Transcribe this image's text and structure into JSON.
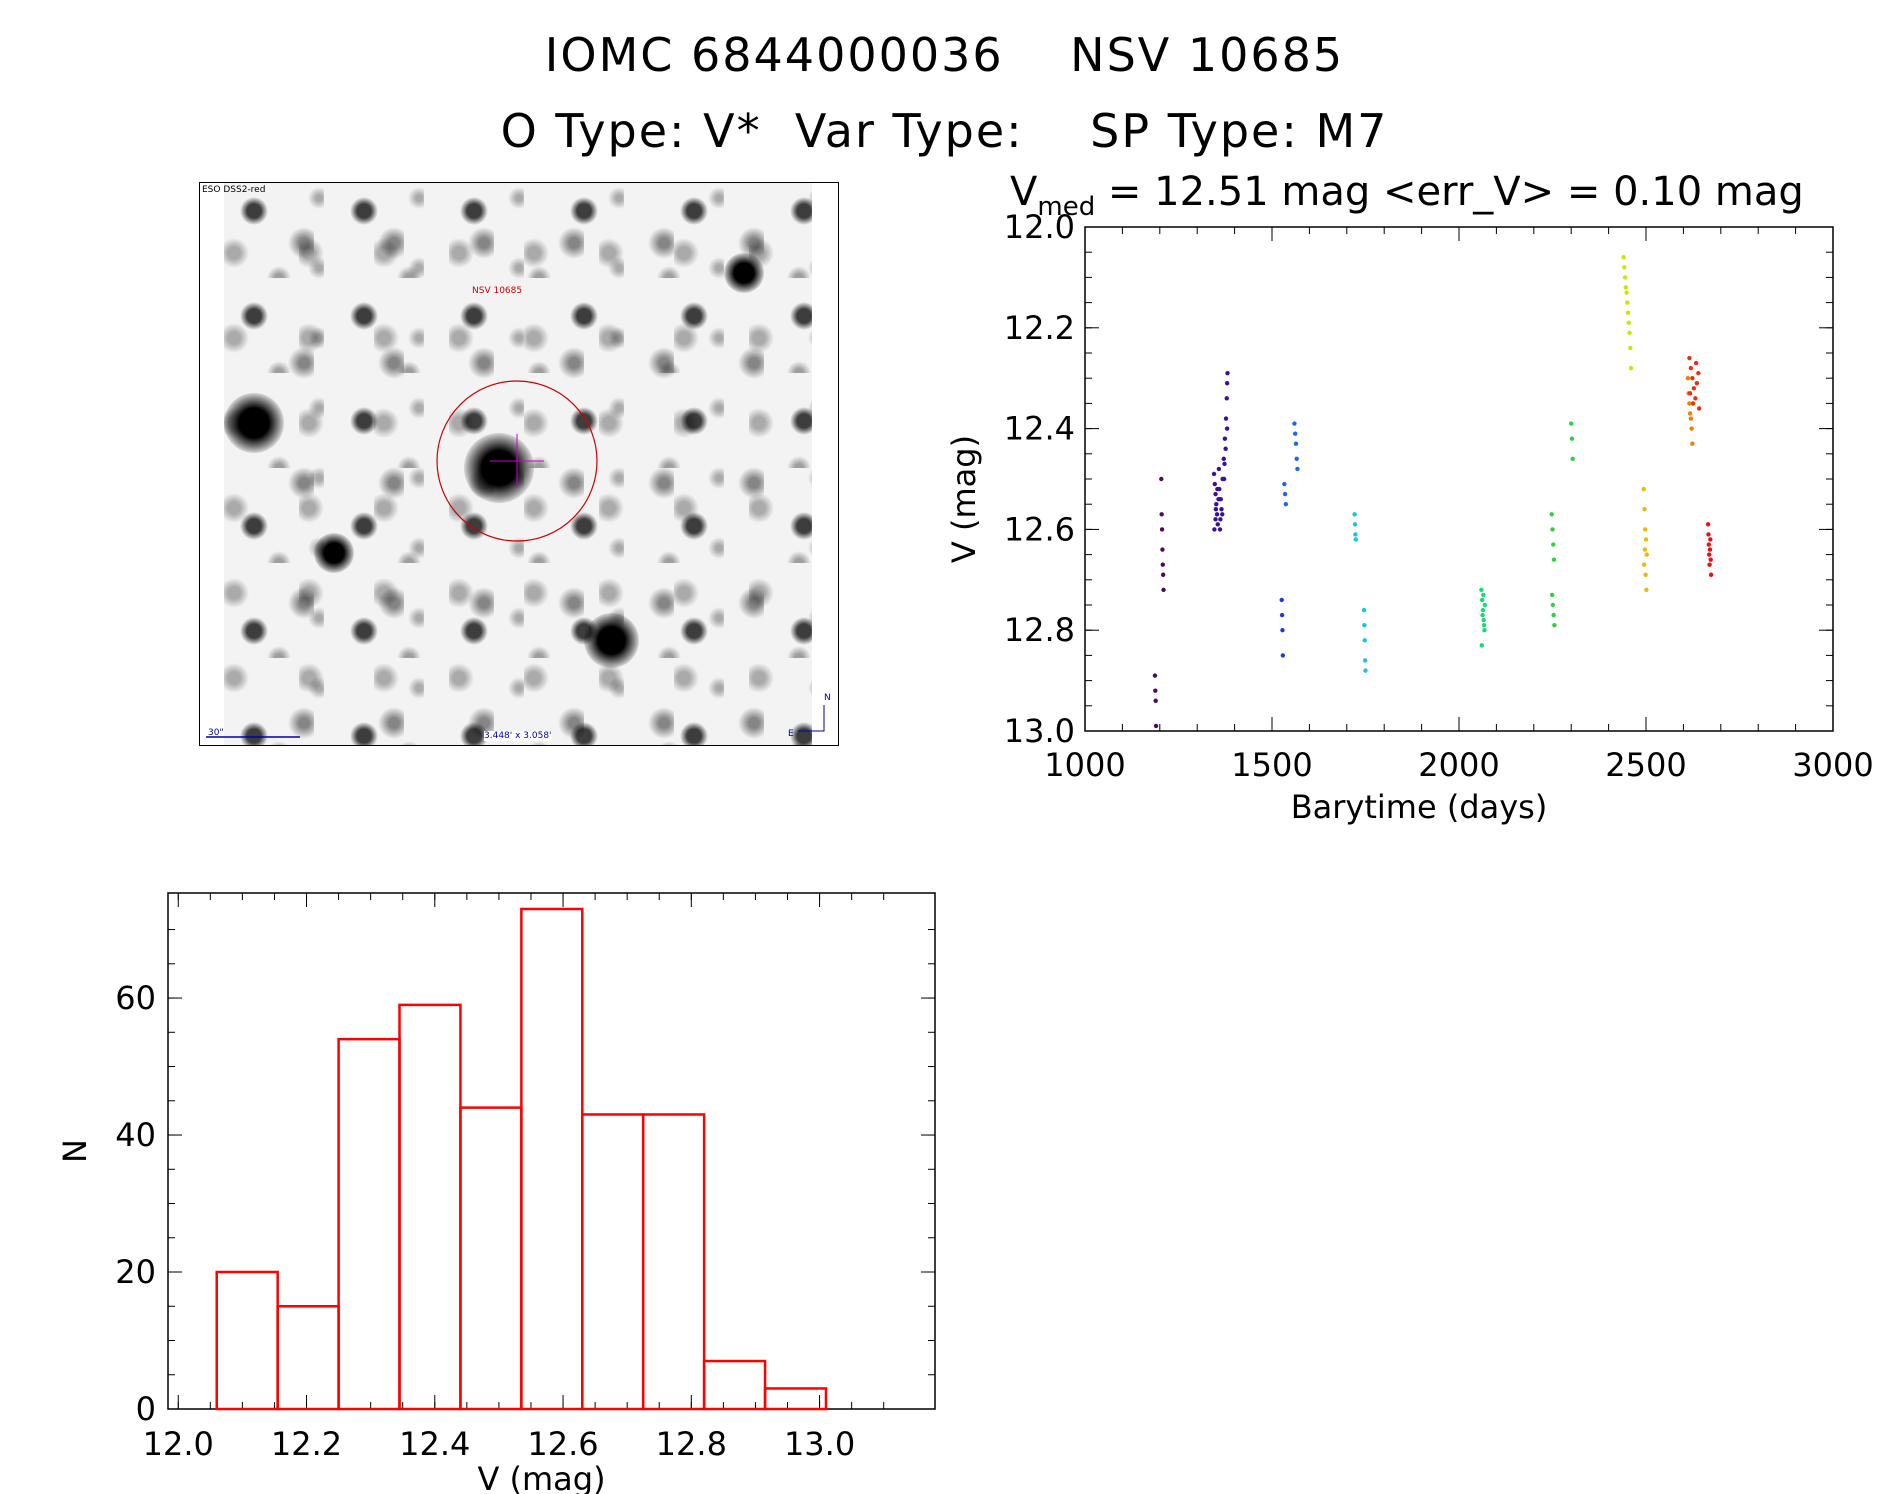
{
  "header": {
    "title_line1": "IOMC 6844000036    NSV 10685",
    "title_line2": "O Type: V*  Var Type:    SP Type: M7"
  },
  "finder_chart": {
    "survey_label": "ESO DSS2-red",
    "target_label": "NSV 10685",
    "scale_label": "30\"",
    "fov_label": "3.448' x 3.058'",
    "north_label": "N",
    "east_label": "E",
    "circle_color": "#cc0000",
    "crosshair_color": "#cc00cc",
    "label_color": "#cc0000",
    "info_color": "#0000aa"
  },
  "light_curve_header": {
    "prefix": "V",
    "subscript": "med",
    "text": " = 12.51 mag <err_V> = 0.10 mag"
  },
  "chart_data": [
    {
      "type": "scatter",
      "xlabel": "Barytime (days)",
      "ylabel": "V (mag)",
      "xlim": [
        1000,
        3000
      ],
      "ylim": [
        13.0,
        12.0
      ],
      "y_reversed": true,
      "xticks": [
        "1000",
        "1500",
        "2000",
        "2500",
        "3000"
      ],
      "yticks": [
        "12.0",
        "12.2",
        "12.4",
        "12.6",
        "12.8",
        "13.0"
      ],
      "series": [
        {
          "color": "#4b0a5e",
          "x": [
            1187,
            1188,
            1189,
            1190,
            1204,
            1205,
            1206,
            1207,
            1208,
            1209,
            1210
          ],
          "y": [
            12.89,
            12.92,
            12.94,
            12.99,
            12.5,
            12.57,
            12.6,
            12.64,
            12.67,
            12.69,
            12.72
          ]
        },
        {
          "color": "#3a0f9e",
          "x": [
            1345,
            1347,
            1349,
            1351,
            1353,
            1355,
            1357,
            1359,
            1362,
            1365,
            1368,
            1371,
            1374,
            1377,
            1379,
            1380,
            1381
          ],
          "y": [
            12.49,
            12.51,
            12.53,
            12.55,
            12.57,
            12.59,
            12.54,
            12.52,
            12.58,
            12.56,
            12.5,
            12.46,
            12.42,
            12.38,
            12.34,
            12.31,
            12.29
          ]
        },
        {
          "color": "#3a0f9e",
          "x": [
            1346,
            1350,
            1354,
            1358,
            1363,
            1367,
            1372,
            1376,
            1380,
            1349,
            1361,
            1373
          ],
          "y": [
            12.6,
            12.56,
            12.52,
            12.48,
            12.54,
            12.57,
            12.5,
            12.44,
            12.4,
            12.58,
            12.6,
            12.47
          ]
        },
        {
          "color": "#1f3ad8",
          "x": [
            1526,
            1527,
            1528,
            1529
          ],
          "y": [
            12.74,
            12.77,
            12.8,
            12.85
          ]
        },
        {
          "color": "#1a6ae8",
          "x": [
            1533,
            1535,
            1537,
            1560,
            1562,
            1564,
            1566,
            1568
          ],
          "y": [
            12.51,
            12.53,
            12.55,
            12.39,
            12.41,
            12.43,
            12.46,
            12.48
          ]
        },
        {
          "color": "#10c8e0",
          "x": [
            1721,
            1722,
            1723,
            1724,
            1746,
            1747,
            1748,
            1749,
            1750
          ],
          "y": [
            12.57,
            12.59,
            12.61,
            12.62,
            12.76,
            12.79,
            12.82,
            12.86,
            12.88
          ]
        },
        {
          "color": "#10e070",
          "x": [
            2060,
            2062,
            2064,
            2066,
            2068,
            2061,
            2063,
            2065,
            2067,
            2069
          ],
          "y": [
            12.72,
            12.74,
            12.76,
            12.78,
            12.8,
            12.83,
            12.77,
            12.73,
            12.79,
            12.75
          ]
        },
        {
          "color": "#30d040",
          "x": [
            2248,
            2250,
            2252,
            2254,
            2249,
            2251,
            2253,
            2255,
            2300,
            2302,
            2304
          ],
          "y": [
            12.57,
            12.6,
            12.63,
            12.66,
            12.73,
            12.75,
            12.77,
            12.79,
            12.39,
            12.42,
            12.46
          ]
        },
        {
          "color": "#c8e800",
          "x": [
            2440,
            2442,
            2444,
            2446,
            2448,
            2450,
            2452,
            2454,
            2456,
            2458,
            2460
          ],
          "y": [
            12.06,
            12.08,
            12.1,
            12.12,
            12.13,
            12.15,
            12.17,
            12.19,
            12.21,
            12.24,
            12.28
          ]
        },
        {
          "color": "#f0b800",
          "x": [
            2494,
            2496,
            2498,
            2500,
            2502,
            2495,
            2497,
            2499,
            2501
          ],
          "y": [
            12.52,
            12.56,
            12.6,
            12.62,
            12.65,
            12.67,
            12.64,
            12.69,
            12.72
          ]
        },
        {
          "color": "#f08000",
          "x": [
            2612,
            2614,
            2616,
            2618,
            2620,
            2622,
            2624
          ],
          "y": [
            12.3,
            12.33,
            12.35,
            12.37,
            12.38,
            12.4,
            12.43
          ]
        },
        {
          "color": "#e83010",
          "x": [
            2616,
            2620,
            2624,
            2628,
            2632,
            2636,
            2640,
            2618,
            2626,
            2634,
            2642
          ],
          "y": [
            12.26,
            12.28,
            12.3,
            12.32,
            12.34,
            12.31,
            12.29,
            12.33,
            12.35,
            12.27,
            12.36
          ]
        },
        {
          "color": "#e81010",
          "x": [
            2666,
            2667,
            2668,
            2669,
            2670,
            2671,
            2672,
            2673,
            2674
          ],
          "y": [
            12.59,
            12.61,
            12.63,
            12.65,
            12.67,
            12.64,
            12.62,
            12.66,
            12.69
          ]
        }
      ]
    },
    {
      "type": "bar",
      "xlabel": "V (mag)",
      "ylabel": "N",
      "xlim": [
        12.0,
        13.18
      ],
      "ylim": [
        0,
        73
      ],
      "xticks": [
        "12.0",
        "12.2",
        "12.4",
        "12.6",
        "12.8",
        "13.0"
      ],
      "yticks": [
        "0",
        "20",
        "40",
        "60"
      ],
      "bin_edges": [
        12.06,
        12.155,
        12.25,
        12.345,
        12.44,
        12.535,
        12.63,
        12.725,
        12.82,
        12.915,
        13.01
      ],
      "values": [
        20,
        15,
        54,
        59,
        44,
        73,
        43,
        43,
        7,
        3
      ],
      "color": "#ff0000"
    }
  ]
}
